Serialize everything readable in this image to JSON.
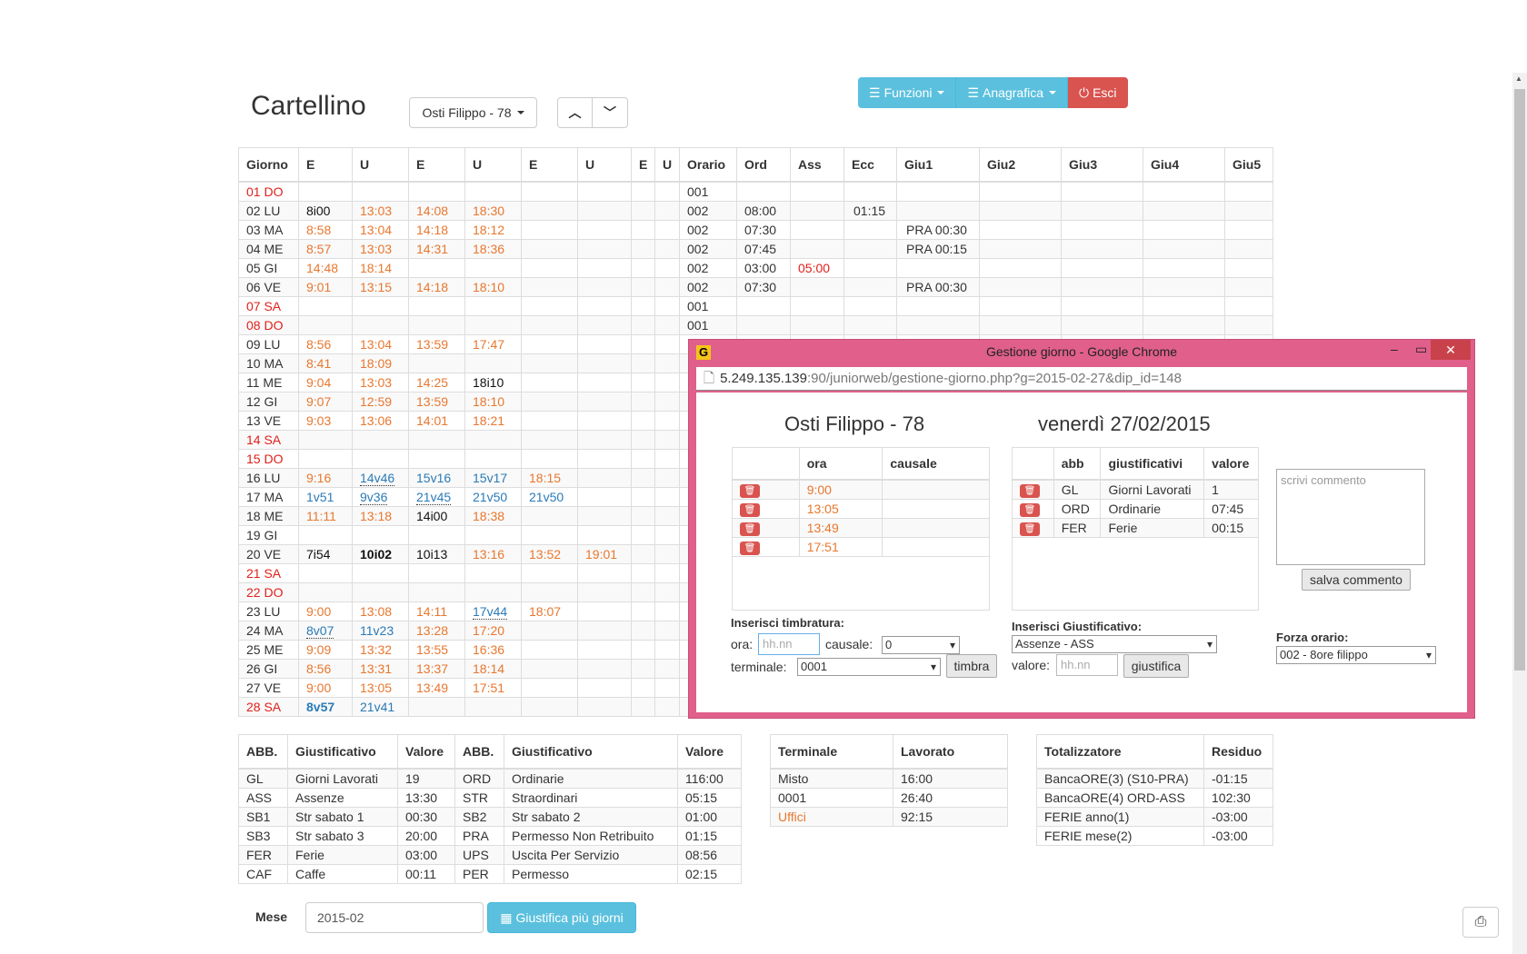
{
  "header": {
    "title": "Cartellino",
    "employee_select": "Osti Filippo - 78",
    "menu": {
      "funzioni": "Funzioni",
      "anagrafica": "Anagrafica",
      "esci": "Esci"
    }
  },
  "main_table": {
    "headers": [
      "Giorno",
      "E",
      "U",
      "E",
      "U",
      "E",
      "U",
      "E",
      "U",
      "Orario",
      "Ord",
      "Ass",
      "Ecc",
      "Giu1",
      "Giu2",
      "Giu3",
      "Giu4",
      "Giu5"
    ],
    "rows": [
      [
        "01 DO",
        "",
        "",
        "",
        "",
        "",
        "",
        "",
        "",
        "001",
        "",
        "",
        "",
        "",
        "",
        "",
        "",
        ""
      ],
      [
        "02 LU",
        "8i00",
        "13:03",
        "14:08",
        "18:30",
        "",
        "",
        "",
        "",
        "002",
        "08:00",
        "",
        "01:15",
        "",
        "",
        "",
        "",
        ""
      ],
      [
        "03 MA",
        "8:58",
        "13:04",
        "14:18",
        "18:12",
        "",
        "",
        "",
        "",
        "002",
        "07:30",
        "",
        "",
        "PRA 00:30",
        "",
        "",
        "",
        ""
      ],
      [
        "04 ME",
        "8:57",
        "13:03",
        "14:31",
        "18:36",
        "",
        "",
        "",
        "",
        "002",
        "07:45",
        "",
        "",
        "PRA 00:15",
        "",
        "",
        "",
        ""
      ],
      [
        "05 GI",
        "14:48",
        "18:14",
        "",
        "",
        "",
        "",
        "",
        "",
        "002",
        "03:00",
        "05:00",
        "",
        "",
        "",
        "",
        "",
        ""
      ],
      [
        "06 VE",
        "9:01",
        "13:15",
        "14:18",
        "18:10",
        "",
        "",
        "",
        "",
        "002",
        "07:30",
        "",
        "",
        "PRA 00:30",
        "",
        "",
        "",
        ""
      ],
      [
        "07 SA",
        "",
        "",
        "",
        "",
        "",
        "",
        "",
        "",
        "001",
        "",
        "",
        "",
        "",
        "",
        "",
        "",
        ""
      ],
      [
        "08 DO",
        "",
        "",
        "",
        "",
        "",
        "",
        "",
        "",
        "001",
        "",
        "",
        "",
        "",
        "",
        "",
        "",
        ""
      ],
      [
        "09 LU",
        "8:56",
        "13:04",
        "13:59",
        "17:47",
        "",
        "",
        "",
        "",
        "",
        "",
        "",
        "",
        "",
        "",
        "",
        "",
        ""
      ],
      [
        "10 MA",
        "8:41",
        "18:09",
        "",
        "",
        "",
        "",
        "",
        "",
        "",
        "",
        "",
        "",
        "",
        "",
        "",
        "",
        ""
      ],
      [
        "11 ME",
        "9:04",
        "13:03",
        "14:25",
        "18i10",
        "",
        "",
        "",
        "",
        "",
        "",
        "",
        "",
        "",
        "",
        "",
        "",
        ""
      ],
      [
        "12 GI",
        "9:07",
        "12:59",
        "13:59",
        "18:10",
        "",
        "",
        "",
        "",
        "",
        "",
        "",
        "",
        "",
        "",
        "",
        "",
        ""
      ],
      [
        "13 VE",
        "9:03",
        "13:06",
        "14:01",
        "18:21",
        "",
        "",
        "",
        "",
        "",
        "",
        "",
        "",
        "",
        "",
        "",
        "",
        ""
      ],
      [
        "14 SA",
        "",
        "",
        "",
        "",
        "",
        "",
        "",
        "",
        "",
        "",
        "",
        "",
        "",
        "",
        "",
        "",
        ""
      ],
      [
        "15 DO",
        "",
        "",
        "",
        "",
        "",
        "",
        "",
        "",
        "",
        "",
        "",
        "",
        "",
        "",
        "",
        "",
        ""
      ],
      [
        "16 LU",
        "9:16",
        "14v46",
        "15v16",
        "15v17",
        "18:15",
        "",
        "",
        "",
        "",
        "",
        "",
        "",
        "",
        "",
        "",
        "",
        ""
      ],
      [
        "17 MA",
        "1v51",
        "9v36",
        "21v45",
        "21v50",
        "21v50",
        "",
        "",
        "",
        "",
        "",
        "",
        "",
        "",
        "",
        "",
        "",
        ""
      ],
      [
        "18 ME",
        "11:11",
        "13:18",
        "14i00",
        "18:38",
        "",
        "",
        "",
        "",
        "",
        "",
        "",
        "",
        "",
        "",
        "",
        "",
        ""
      ],
      [
        "19 GI",
        "",
        "",
        "",
        "",
        "",
        "",
        "",
        "",
        "",
        "",
        "",
        "",
        "",
        "",
        "",
        "",
        ""
      ],
      [
        "20 VE",
        "7i54",
        "10i02",
        "10i13",
        "13:16",
        "13:52",
        "19:01",
        "",
        "",
        "",
        "",
        "",
        "",
        "",
        "",
        "",
        "",
        ""
      ],
      [
        "21 SA",
        "",
        "",
        "",
        "",
        "",
        "",
        "",
        "",
        "",
        "",
        "",
        "",
        "",
        "",
        "",
        "",
        ""
      ],
      [
        "22 DO",
        "",
        "",
        "",
        "",
        "",
        "",
        "",
        "",
        "",
        "",
        "",
        "",
        "",
        "",
        "",
        "",
        ""
      ],
      [
        "23 LU",
        "9:00",
        "13:08",
        "14:11",
        "17v44",
        "18:07",
        "",
        "",
        "",
        "",
        "",
        "",
        "",
        "",
        "",
        "",
        "",
        ""
      ],
      [
        "24 MA",
        "8v07",
        "11v23",
        "13:28",
        "17:20",
        "",
        "",
        "",
        "",
        "",
        "",
        "",
        "",
        "",
        "",
        "",
        "",
        ""
      ],
      [
        "25 ME",
        "9:09",
        "13:32",
        "13:55",
        "16:36",
        "",
        "",
        "",
        "",
        "",
        "",
        "",
        "",
        "",
        "",
        "",
        "",
        ""
      ],
      [
        "26 GI",
        "8:56",
        "13:31",
        "13:37",
        "18:14",
        "",
        "",
        "",
        "",
        "",
        "",
        "",
        "",
        "",
        "",
        "",
        "",
        ""
      ],
      [
        "27 VE",
        "9:00",
        "13:05",
        "13:49",
        "17:51",
        "",
        "",
        "",
        "",
        "",
        "",
        "",
        "",
        "",
        "",
        "",
        "",
        ""
      ],
      [
        "28 SA",
        "8v57",
        "21v41",
        "",
        "",
        "",
        "",
        "",
        "",
        "",
        "",
        "",
        "",
        "",
        "",
        "",
        "",
        ""
      ]
    ]
  },
  "summary_table": {
    "headers": [
      "ABB.",
      "Giustificativo",
      "Valore",
      "ABB.",
      "Giustificativo",
      "Valore"
    ],
    "rows": [
      [
        "GL",
        "Giorni Lavorati",
        "19",
        "ORD",
        "Ordinarie",
        "116:00"
      ],
      [
        "ASS",
        "Assenze",
        "13:30",
        "STR",
        "Straordinari",
        "05:15"
      ],
      [
        "SB1",
        "Str sabato 1",
        "00:30",
        "SB2",
        "Str sabato 2",
        "01:00"
      ],
      [
        "SB3",
        "Str sabato 3",
        "20:00",
        "PRA",
        "Permesso Non Retribuito",
        "01:15"
      ],
      [
        "FER",
        "Ferie",
        "03:00",
        "UPS",
        "Uscita Per Servizio",
        "08:56"
      ],
      [
        "CAF",
        "Caffe",
        "00:11",
        "PER",
        "Permesso",
        "02:15"
      ]
    ]
  },
  "terminal_table": {
    "headers": [
      "Terminale",
      "Lavorato"
    ],
    "rows": [
      [
        "Misto",
        "16:00"
      ],
      [
        "0001",
        "26:40"
      ],
      [
        "Uffici",
        "92:15"
      ]
    ]
  },
  "totals_table": {
    "headers": [
      "Totalizzatore",
      "Residuo"
    ],
    "rows": [
      [
        "BancaORE(3) (S10-PRA)",
        "-01:15"
      ],
      [
        "BancaORE(4) ORD-ASS",
        "102:30"
      ],
      [
        "FERIE anno(1)",
        "-03:00"
      ],
      [
        "FERIE mese(2)",
        "-03:00"
      ]
    ]
  },
  "footer": {
    "mese_label": "Mese",
    "mese_value": "2015-02",
    "giustifica_button": "Giustifica più giorni"
  },
  "popup": {
    "window_title": "Gestione giorno - Google Chrome",
    "url_host": "5.249.135.139",
    "url_path": ":90/juniorweb/gestione-giorno.php?g=2015-02-27&dip_id=148",
    "employee": "Osti Filippo - 78",
    "date": "venerdì 27/02/2015",
    "punch_headers": [
      "ora",
      "causale"
    ],
    "punches": [
      "9:00",
      "13:05",
      "13:49",
      "17:51"
    ],
    "just_headers": [
      "abb",
      "giustificativi",
      "valore"
    ],
    "justifications": [
      [
        "GL",
        "Giorni Lavorati",
        "1"
      ],
      [
        "ORD",
        "Ordinarie",
        "07:45"
      ],
      [
        "FER",
        "Ferie",
        "00:15"
      ]
    ],
    "comment_placeholder": "scrivi commento",
    "save_comment": "salva commento",
    "insert_punch_label": "Inserisci timbratura:",
    "ora_label": "ora:",
    "ora_placeholder": "hh.nn",
    "causale_label": "causale:",
    "causale_value": "0",
    "terminale_label": "terminale:",
    "terminale_value": "0001",
    "timbra_button": "timbra",
    "insert_just_label": "Inserisci Giustificativo:",
    "just_select": "Assenze - ASS",
    "valore_label": "valore:",
    "valore_placeholder": "hh.nn",
    "giustifica_button": "giustifica",
    "force_label": "Forza orario:",
    "force_select": "002 - 8ore filippo"
  },
  "colors": {
    "info": "#5bc0de",
    "danger": "#d9534f",
    "weekend": "#e0201b",
    "clock": "#e8772e",
    "manual": "#2a7ab7",
    "popup_frame": "#e0608b"
  }
}
